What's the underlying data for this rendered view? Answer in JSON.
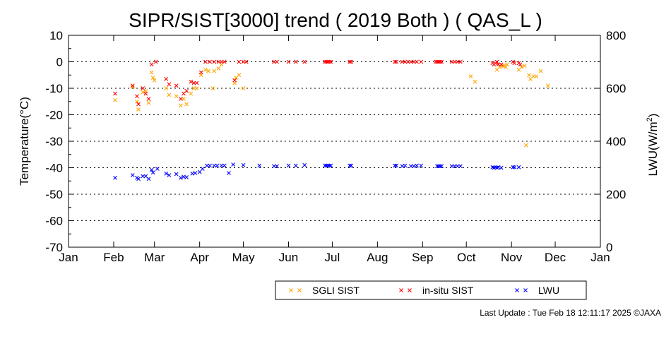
{
  "chart_data": {
    "type": "scatter",
    "title": "SIPR/SIST[3000] trend ( 2019 Both ) ( QAS_L )",
    "ylabel": "Temperature(°C)",
    "y2label_main": "LWU(W/m",
    "y2label_sup": "2",
    "y2label_end": ")",
    "xlabel": "",
    "grid": "horizontal dotted",
    "legend_position": "bottom-right",
    "x_range": [
      1,
      366
    ],
    "ylim": [
      -70,
      10
    ],
    "y2lim": [
      0,
      800
    ],
    "y_ticks": [
      10,
      0,
      -10,
      -20,
      -30,
      -40,
      -50,
      -60,
      -70
    ],
    "y2_ticks": [
      800,
      600,
      400,
      200,
      0
    ],
    "x_ticks": [
      {
        "label": "Jan",
        "day": 1
      },
      {
        "label": "Feb",
        "day": 32
      },
      {
        "label": "Mar",
        "day": 60
      },
      {
        "label": "Apr",
        "day": 91
      },
      {
        "label": "May",
        "day": 121
      },
      {
        "label": "Jun",
        "day": 152
      },
      {
        "label": "Jul",
        "day": 182
      },
      {
        "label": "Aug",
        "day": 213
      },
      {
        "label": "Sep",
        "day": 244
      },
      {
        "label": "Oct",
        "day": 274
      },
      {
        "label": "Nov",
        "day": 305
      },
      {
        "label": "Dec",
        "day": 335
      },
      {
        "label": "Jan",
        "day": 366
      }
    ],
    "series": [
      {
        "name": "SGLI SIST",
        "color": "#ffa500",
        "axis": "left",
        "points": [
          [
            33,
            -14.5
          ],
          [
            45,
            -9.5
          ],
          [
            48,
            -15
          ],
          [
            49,
            -18
          ],
          [
            52,
            -11.5
          ],
          [
            54,
            -11
          ],
          [
            56,
            -15.5
          ],
          [
            58,
            -4
          ],
          [
            59,
            -6
          ],
          [
            60,
            -7
          ],
          [
            68,
            -10
          ],
          [
            70,
            -12.5
          ],
          [
            75,
            -13
          ],
          [
            78,
            -16.5
          ],
          [
            80,
            -14
          ],
          [
            82,
            -16
          ],
          [
            85,
            -12
          ],
          [
            87,
            -10
          ],
          [
            89,
            -10
          ],
          [
            92,
            -5
          ],
          [
            95,
            -3
          ],
          [
            97,
            -3.5
          ],
          [
            100,
            -10
          ],
          [
            101,
            -3.5
          ],
          [
            104,
            -2.5
          ],
          [
            106,
            -1
          ],
          [
            115,
            -8
          ],
          [
            116,
            -6
          ],
          [
            118,
            -5
          ],
          [
            121,
            -10
          ],
          [
            277,
            -5.5
          ],
          [
            280,
            -7.5
          ],
          [
            295,
            -3
          ],
          [
            297,
            -2
          ],
          [
            299,
            -1.5
          ],
          [
            300,
            -1.5
          ],
          [
            301,
            -2
          ],
          [
            302,
            -1
          ],
          [
            310,
            -3
          ],
          [
            312,
            -2
          ],
          [
            314,
            -1.5
          ],
          [
            317,
            -5
          ],
          [
            318,
            -6.5
          ],
          [
            320,
            -5.5
          ],
          [
            322,
            -5.5
          ],
          [
            325,
            -3.5
          ],
          [
            330,
            -9
          ],
          [
            315,
            -31.5
          ]
        ]
      },
      {
        "name": "in-situ SIST",
        "color": "#ff0000",
        "axis": "left",
        "points": [
          [
            33,
            -12
          ],
          [
            45,
            -9
          ],
          [
            48,
            -13
          ],
          [
            49,
            -16
          ],
          [
            52,
            -10
          ],
          [
            54,
            -12
          ],
          [
            56,
            -14
          ],
          [
            58,
            -1
          ],
          [
            61,
            0
          ],
          [
            68,
            -6.5
          ],
          [
            70,
            -8.5
          ],
          [
            75,
            -9
          ],
          [
            78,
            -14
          ],
          [
            80,
            -12
          ],
          [
            82,
            -11
          ],
          [
            85,
            -7.5
          ],
          [
            87,
            -8
          ],
          [
            89,
            -8
          ],
          [
            92,
            -4
          ],
          [
            95,
            0
          ],
          [
            98,
            0
          ],
          [
            101,
            0
          ],
          [
            104,
            0
          ],
          [
            106,
            0
          ],
          [
            108,
            0
          ],
          [
            115,
            -7
          ],
          [
            118,
            0
          ],
          [
            121,
            0
          ],
          [
            123,
            0
          ],
          [
            142,
            0
          ],
          [
            144,
            0
          ],
          [
            152,
            0
          ],
          [
            157,
            0
          ],
          [
            163,
            0
          ],
          [
            177,
            0
          ],
          [
            178,
            0
          ],
          [
            179,
            0
          ],
          [
            180,
            0
          ],
          [
            181,
            0
          ],
          [
            194,
            0
          ],
          [
            195,
            0
          ],
          [
            225,
            0
          ],
          [
            226,
            0
          ],
          [
            230,
            0
          ],
          [
            232,
            0
          ],
          [
            234,
            0
          ],
          [
            236,
            0
          ],
          [
            238,
            0
          ],
          [
            240,
            0
          ],
          [
            243,
            0
          ],
          [
            253,
            0
          ],
          [
            254,
            0
          ],
          [
            255,
            0
          ],
          [
            256,
            0
          ],
          [
            257,
            0
          ],
          [
            264,
            0
          ],
          [
            266,
            0
          ],
          [
            268,
            0
          ],
          [
            270,
            0
          ],
          [
            292,
            -0.5
          ],
          [
            293,
            -1
          ],
          [
            294,
            -0.5
          ],
          [
            295,
            0
          ],
          [
            296,
            -1
          ],
          [
            298,
            -1
          ],
          [
            306,
            0
          ],
          [
            307,
            -0.5
          ],
          [
            310,
            -0.5
          ],
          [
            311,
            -1
          ]
        ]
      },
      {
        "name": "LWU",
        "color": "#0000ff",
        "axis": "right",
        "points": [
          [
            33,
            262
          ],
          [
            45,
            272
          ],
          [
            48,
            262
          ],
          [
            49,
            258
          ],
          [
            52,
            268
          ],
          [
            54,
            268
          ],
          [
            56,
            258
          ],
          [
            58,
            292
          ],
          [
            59,
            282
          ],
          [
            62,
            296
          ],
          [
            68,
            278
          ],
          [
            70,
            272
          ],
          [
            75,
            276
          ],
          [
            78,
            262
          ],
          [
            80,
            266
          ],
          [
            82,
            264
          ],
          [
            86,
            278
          ],
          [
            88,
            280
          ],
          [
            91,
            284
          ],
          [
            93,
            296
          ],
          [
            96,
            308
          ],
          [
            98,
            308
          ],
          [
            101,
            308
          ],
          [
            103,
            308
          ],
          [
            106,
            308
          ],
          [
            108,
            308
          ],
          [
            111,
            280
          ],
          [
            114,
            312
          ],
          [
            121,
            310
          ],
          [
            132,
            308
          ],
          [
            142,
            306
          ],
          [
            144,
            306
          ],
          [
            152,
            308
          ],
          [
            157,
            308
          ],
          [
            163,
            310
          ],
          [
            177,
            308
          ],
          [
            178,
            308
          ],
          [
            179,
            308
          ],
          [
            180,
            308
          ],
          [
            181,
            308
          ],
          [
            194,
            308
          ],
          [
            195,
            308
          ],
          [
            225,
            308
          ],
          [
            226,
            308
          ],
          [
            230,
            306
          ],
          [
            232,
            308
          ],
          [
            236,
            306
          ],
          [
            238,
            306
          ],
          [
            240,
            308
          ],
          [
            243,
            308
          ],
          [
            254,
            306
          ],
          [
            255,
            306
          ],
          [
            256,
            306
          ],
          [
            257,
            306
          ],
          [
            264,
            306
          ],
          [
            266,
            306
          ],
          [
            268,
            306
          ],
          [
            270,
            306
          ],
          [
            292,
            302
          ],
          [
            293,
            300
          ],
          [
            294,
            302
          ],
          [
            295,
            300
          ],
          [
            296,
            302
          ],
          [
            298,
            300
          ],
          [
            306,
            302
          ],
          [
            307,
            302
          ],
          [
            310,
            302
          ]
        ]
      }
    ]
  },
  "footer": {
    "last_update": "Last Update : Tue Feb 18 12:11:17 2025  ©JAXA"
  }
}
